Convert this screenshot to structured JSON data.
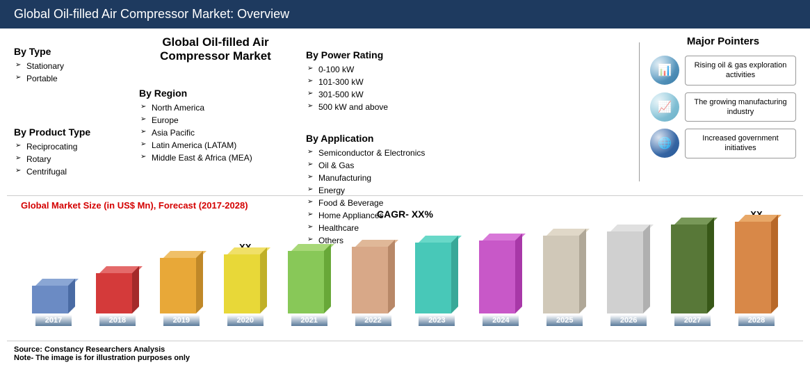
{
  "header": {
    "title": "Global Oil-filled Air Compressor Market: Overview"
  },
  "centerTitle": "Global Oil-filled Air Compressor Market",
  "segments": {
    "type": {
      "title": "By Type",
      "items": [
        "Stationary",
        "Portable"
      ]
    },
    "productType": {
      "title": "By Product Type",
      "items": [
        "Reciprocating",
        "Rotary",
        "Centrifugal"
      ]
    },
    "region": {
      "title": "By Region",
      "items": [
        "North America",
        "Europe",
        "Asia Pacific",
        "Latin America (LATAM)",
        "Middle East & Africa (MEA)"
      ]
    },
    "powerRating": {
      "title": "By Power Rating",
      "items": [
        "0-100 kW",
        "101-300 kW",
        "301-500 kW",
        "500 kW and above"
      ]
    },
    "application": {
      "title": "By Application",
      "items": [
        "Semiconductor & Electronics",
        "Oil & Gas",
        "Manufacturing",
        "Energy",
        "Food & Beverage",
        "Home Appliances",
        "Healthcare",
        "Others"
      ]
    }
  },
  "pointers": {
    "title": "Major Pointers",
    "items": [
      {
        "text": "Rising oil & gas exploration activities",
        "iconBg": "linear-gradient(135deg,#7fb8d8,#3a7ca8)",
        "iconGlyph": "📊"
      },
      {
        "text": "The growing manufacturing industry",
        "iconBg": "linear-gradient(135deg,#a8d8e8,#6ab0c8)",
        "iconGlyph": "📈"
      },
      {
        "text": "Increased government initiatives",
        "iconBg": "linear-gradient(135deg,#4a7ab8,#2a5a98)",
        "iconGlyph": "🌐"
      }
    ]
  },
  "chart": {
    "title": "Global Market Size (in US$ Mn), Forecast (2017-2028)",
    "cagrLabel": "CAGR- XX%",
    "type": "bar3d",
    "background": "#ffffff",
    "bars": [
      {
        "year": "2017",
        "height": 40,
        "front": "#6b8bc4",
        "top": "#8aa6d4",
        "side": "#4a6ba4",
        "label": ""
      },
      {
        "year": "2018",
        "height": 58,
        "front": "#d43a3a",
        "top": "#e46a6a",
        "side": "#a42a2a",
        "label": ""
      },
      {
        "year": "2019",
        "height": 80,
        "front": "#e8a838",
        "top": "#f0c068",
        "side": "#c08828",
        "label": ""
      },
      {
        "year": "2020",
        "height": 85,
        "front": "#e8d838",
        "top": "#f0e068",
        "side": "#c0b028",
        "label": "XX"
      },
      {
        "year": "2021",
        "height": 90,
        "front": "#88c858",
        "top": "#a8d878",
        "side": "#68a838",
        "label": ""
      },
      {
        "year": "2022",
        "height": 96,
        "front": "#d8a888",
        "top": "#e0b898",
        "side": "#b88868",
        "label": ""
      },
      {
        "year": "2023",
        "height": 102,
        "front": "#48c8b8",
        "top": "#68d8c8",
        "side": "#38a898",
        "label": ""
      },
      {
        "year": "2024",
        "height": 105,
        "front": "#c858c8",
        "top": "#d878d8",
        "side": "#a838a8",
        "label": ""
      },
      {
        "year": "2025",
        "height": 112,
        "front": "#d0c8b8",
        "top": "#e0d8c8",
        "side": "#b0a898",
        "label": ""
      },
      {
        "year": "2026",
        "height": 118,
        "front": "#d0d0d0",
        "top": "#e0e0e0",
        "side": "#b0b0b0",
        "label": ""
      },
      {
        "year": "2027",
        "height": 128,
        "front": "#587838",
        "top": "#789858",
        "side": "#385818",
        "label": ""
      },
      {
        "year": "2028",
        "height": 132,
        "front": "#d88848",
        "top": "#e8a868",
        "side": "#b86828",
        "label": "XX"
      }
    ]
  },
  "footer": {
    "source": "Source: Constancy Researchers Analysis",
    "note": "Note- The image is for illustration purposes only"
  }
}
